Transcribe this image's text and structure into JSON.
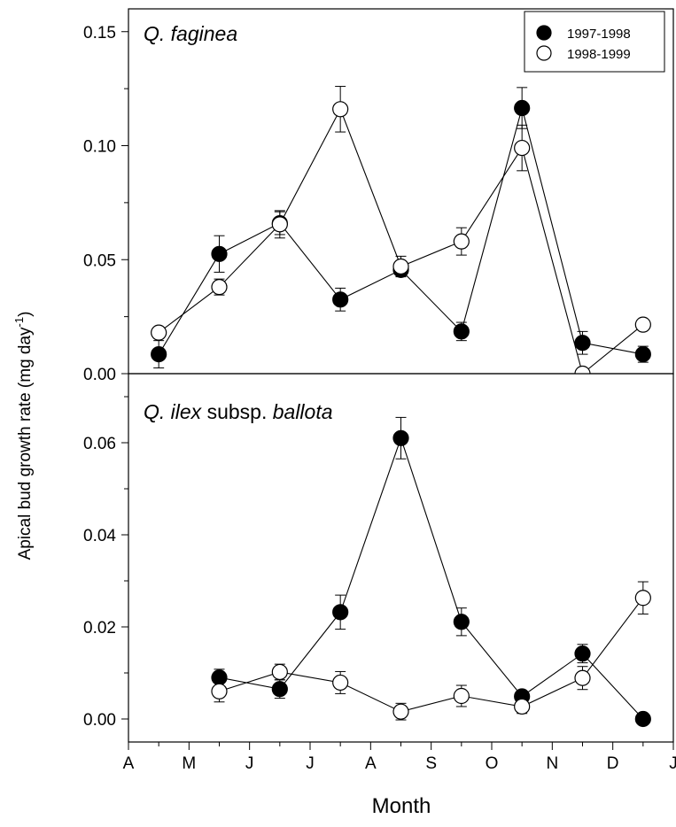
{
  "chart_data": [
    {
      "id": "top",
      "type": "scatter",
      "panel_title": {
        "species": "Q. faginea",
        "suffix": ""
      },
      "ylim": [
        0,
        0.16
      ],
      "yticks": [
        0.0,
        0.05,
        0.1,
        0.15
      ],
      "ytick_labels": [
        "0.00",
        "0.05",
        "0.10",
        "0.15"
      ],
      "legend": {
        "placement": "top-right",
        "entries": [
          {
            "label": "1997-1998",
            "filled": true
          },
          {
            "label": "1998-1999",
            "filled": false
          }
        ]
      },
      "series": [
        {
          "name": "1997-1998",
          "filled": true,
          "x": [
            0.5,
            1.5,
            2.5,
            3.5,
            4.5,
            5.5,
            6.5,
            7.5,
            8.5
          ],
          "y": [
            0.0085,
            0.0525,
            0.066,
            0.0325,
            0.0455,
            0.0185,
            0.1165,
            0.0135,
            0.0085
          ],
          "err": [
            0.006,
            0.008,
            0.005,
            0.005,
            0.003,
            0.004,
            0.009,
            0.005,
            0.0035
          ]
        },
        {
          "name": "1998-1999",
          "filled": false,
          "x": [
            0.5,
            1.5,
            2.5,
            3.5,
            4.5,
            5.5,
            6.5,
            7.5,
            8.5
          ],
          "y": [
            0.018,
            0.038,
            0.0655,
            0.116,
            0.047,
            0.058,
            0.099,
            0.0,
            0.0215
          ],
          "err": [
            0.0,
            0.0035,
            0.006,
            0.01,
            0.0045,
            0.006,
            0.01,
            0.0,
            0.0
          ]
        }
      ]
    },
    {
      "id": "bottom",
      "type": "scatter",
      "panel_title": {
        "species": "Q. ilex",
        "mid": " subsp. ",
        "sub": "ballota"
      },
      "ylim": [
        -0.005,
        0.075
      ],
      "yticks": [
        0.0,
        0.02,
        0.04,
        0.06
      ],
      "ytick_labels": [
        "0.00",
        "0.02",
        "0.04",
        "0.06"
      ],
      "series": [
        {
          "name": "1997-1998",
          "filled": true,
          "x": [
            1.5,
            2.5,
            3.5,
            4.5,
            5.5,
            6.5,
            7.5,
            8.5
          ],
          "y": [
            0.009,
            0.0065,
            0.0232,
            0.061,
            0.0211,
            0.0049,
            0.0142,
            0.0
          ],
          "err": [
            0.0018,
            0.002,
            0.0037,
            0.0045,
            0.003,
            0.001,
            0.002,
            0.0
          ]
        },
        {
          "name": "1998-1999",
          "filled": false,
          "x": [
            1.5,
            2.5,
            3.5,
            4.5,
            5.5,
            6.5,
            7.5,
            8.5
          ],
          "y": [
            0.006,
            0.0102,
            0.0079,
            0.0016,
            0.005,
            0.0027,
            0.0089,
            0.0263
          ],
          "err": [
            0.0023,
            0.0017,
            0.0024,
            0.0018,
            0.0023,
            0.0015,
            0.0025,
            0.0035
          ]
        }
      ]
    }
  ],
  "x_axis": {
    "title": "Month",
    "categories": [
      "A",
      "M",
      "J",
      "J",
      "A",
      "S",
      "O",
      "N",
      "D",
      "J"
    ],
    "xlim": [
      0,
      9
    ]
  },
  "y_axis_title": {
    "main": "Apical bud growth rate (mg day",
    "superscript": "-1",
    "close": ")"
  }
}
